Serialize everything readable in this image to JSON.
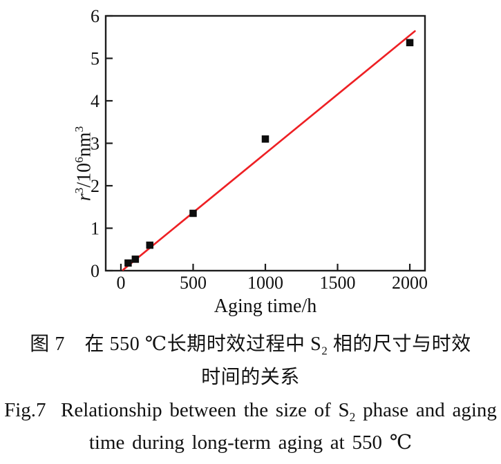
{
  "chart_data": {
    "type": "scatter",
    "title": "",
    "xlabel": "Aging time/h",
    "ylabel": "r^3/10^6 nm^3",
    "ylabel_parts": {
      "base1": "r",
      "sup1": "3",
      "base2": "/10",
      "sup2": "6",
      "base3": "nm",
      "sup3": "3"
    },
    "x_axis": {
      "min": -105,
      "max": 2105,
      "ticks": [
        0,
        500,
        1000,
        1500,
        2000
      ]
    },
    "y_axis": {
      "min": 0,
      "max": 6,
      "ticks": [
        0,
        1,
        2,
        3,
        4,
        5,
        6
      ]
    },
    "grid": false,
    "legend": false,
    "frame_color": "#1c1c1c",
    "tick_label_color": "#111111",
    "series": [
      {
        "name": "S2 phase size",
        "marker": "square",
        "color": "#0d0d0d",
        "points": [
          [
            50,
            0.18
          ],
          [
            100,
            0.27
          ],
          [
            200,
            0.6
          ],
          [
            500,
            1.35
          ],
          [
            1000,
            3.1
          ],
          [
            2000,
            5.37
          ]
        ]
      }
    ],
    "fit_line": {
      "color": "#ee2024",
      "x1": 15,
      "y1": 0.02,
      "x2": 2035,
      "y2": 5.64
    }
  },
  "captions": {
    "cn_line1_pre": "图 7　在 550 ℃长期时效过程中 S",
    "cn_line1_sub": "2",
    "cn_line1_post": " 相的尺寸与时效",
    "cn_line2": "时间的关系",
    "en_line1_pre": "Fig.7  Relationship between the size of S",
    "en_line1_sub": "2",
    "en_line1_post": " phase and aging",
    "en_line2": "time during long-term aging at 550 ℃"
  }
}
